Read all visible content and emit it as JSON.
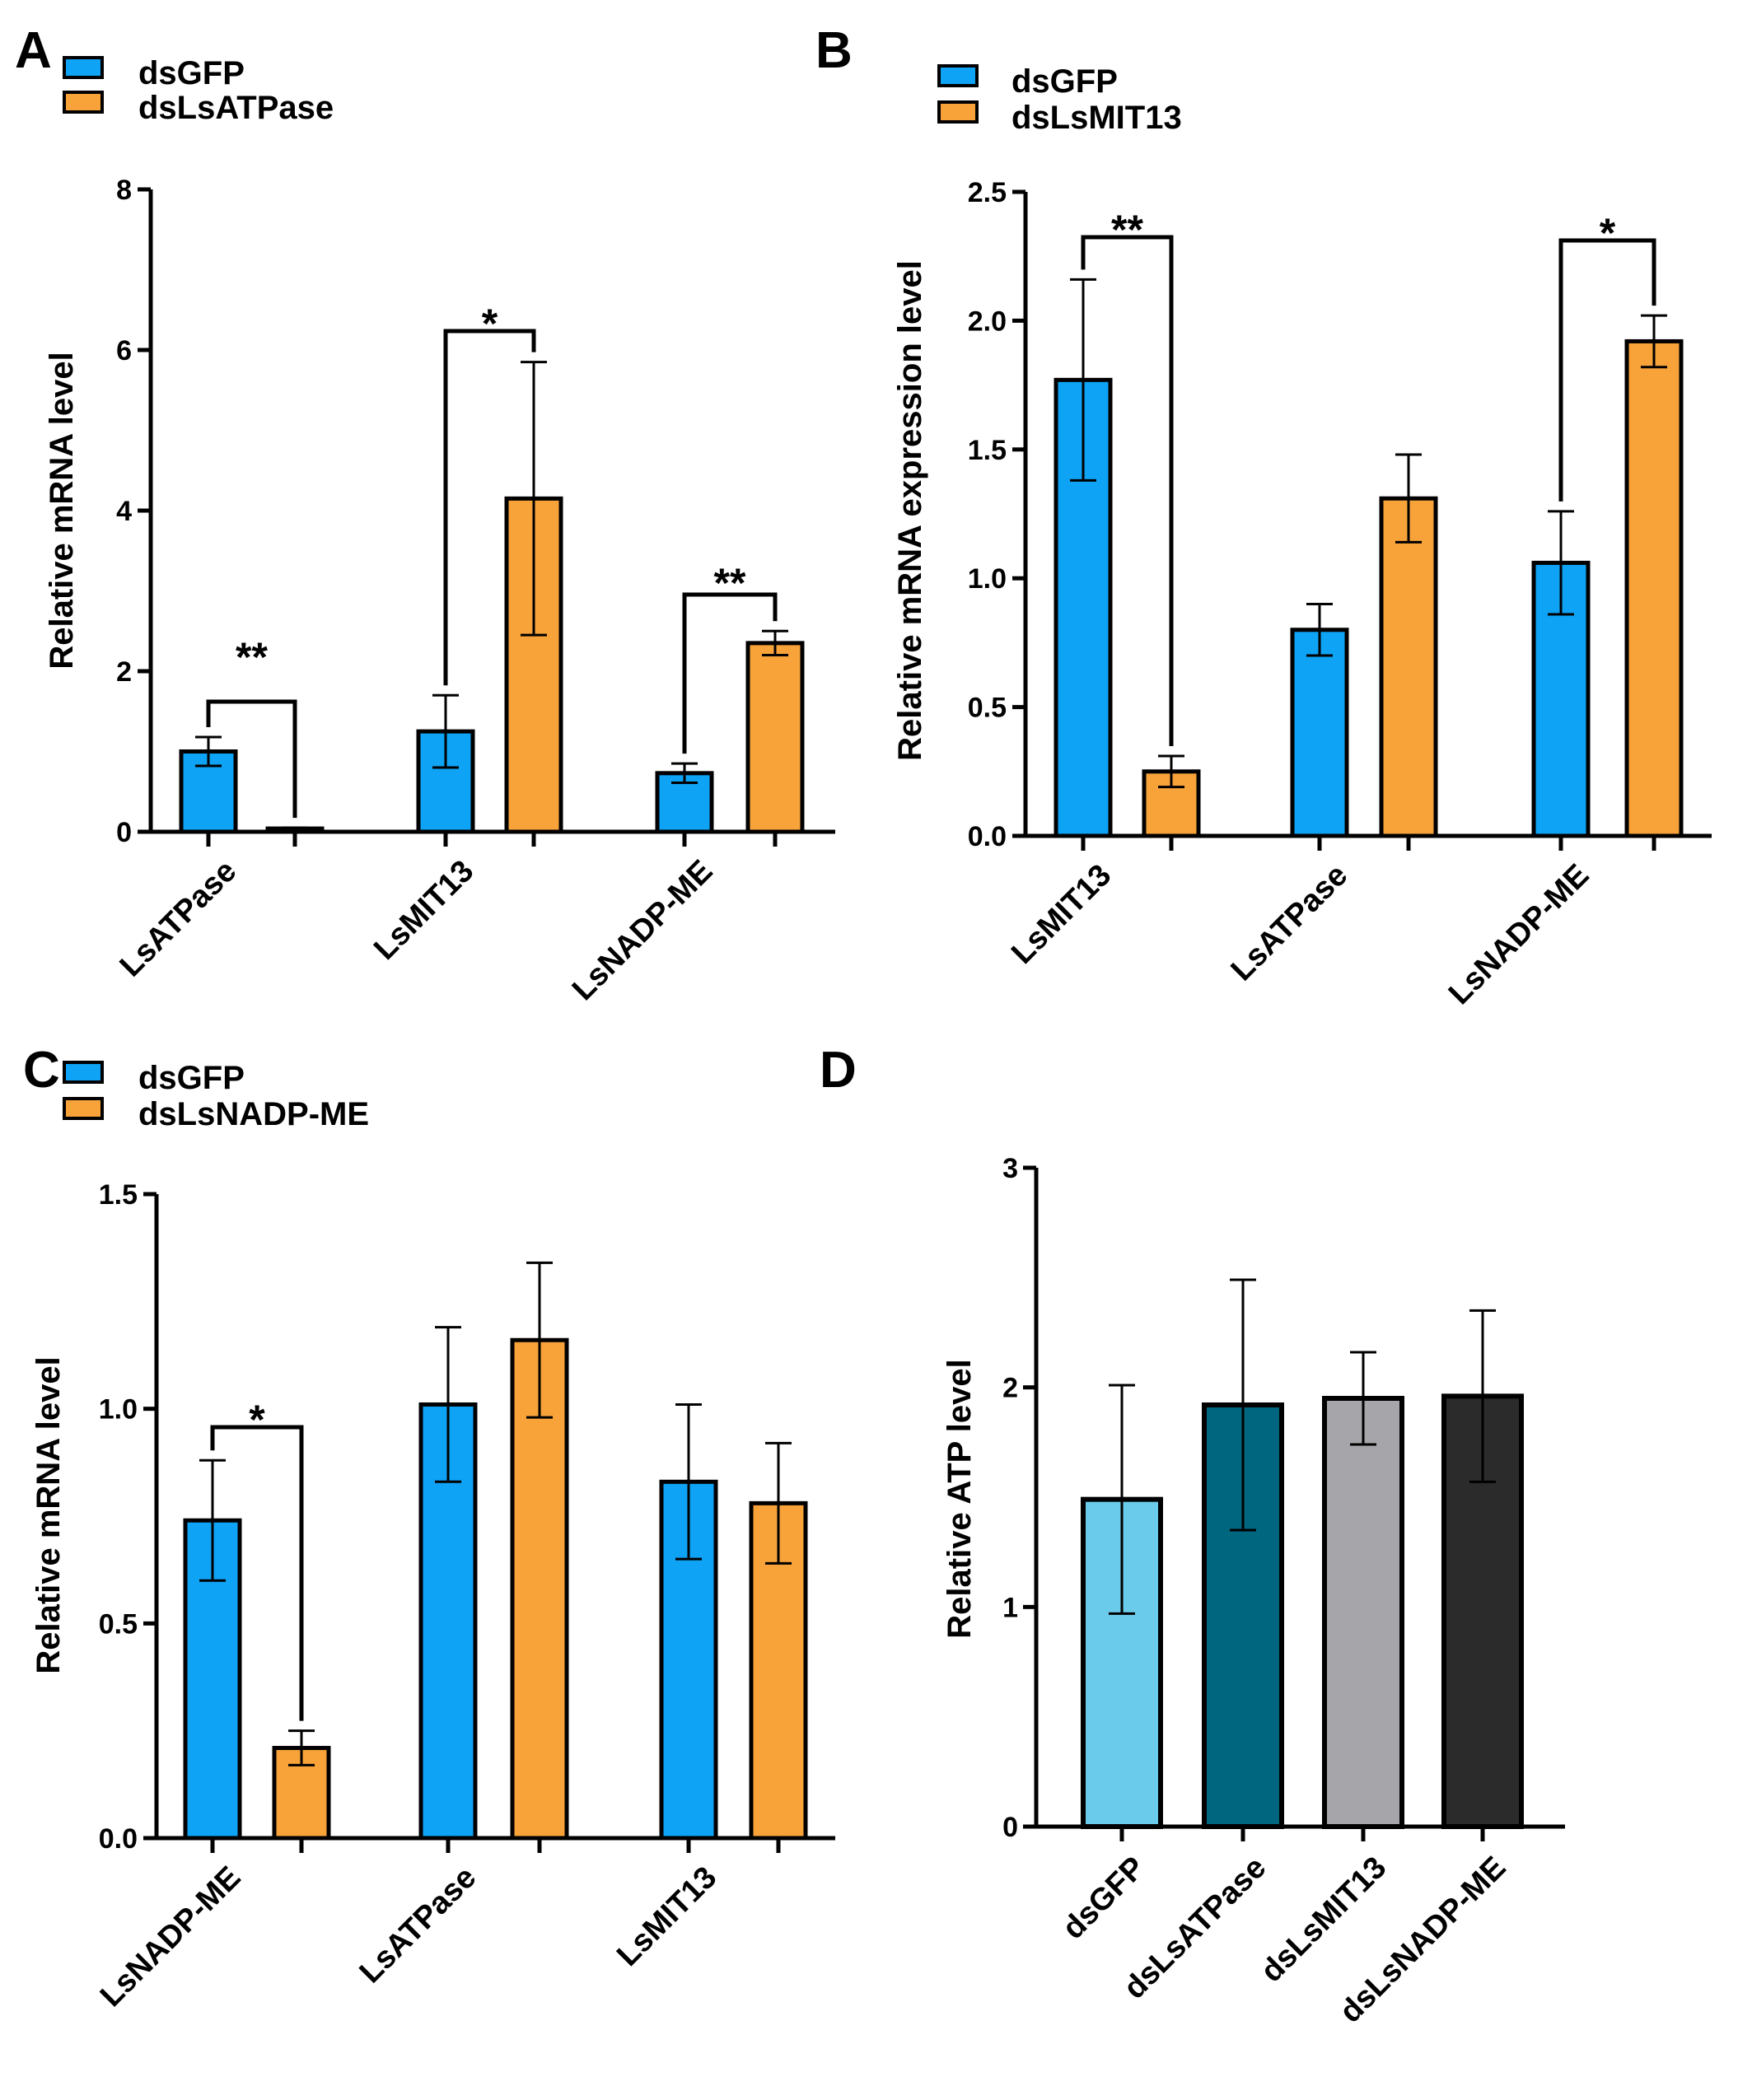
{
  "chart_data": [
    {
      "panel": "A",
      "type": "bar",
      "ylabel": "Relative mRNA  level",
      "ylim": [
        0,
        8
      ],
      "yticks": [
        0,
        2,
        4,
        6,
        8
      ],
      "ytick_labels": [
        "0",
        "2",
        "4",
        "6",
        "8"
      ],
      "categories": [
        "LsATPase",
        "LsMIT13",
        "LsNADP-ME"
      ],
      "legend_position": "top-left",
      "series": [
        {
          "name": "dsGFP",
          "color": "#0EA3F5",
          "values": [
            1.0,
            1.25,
            0.73
          ],
          "errors": [
            0.18,
            0.45,
            0.12
          ]
        },
        {
          "name": "dsLsATPase",
          "color": "#F8A33A",
          "values": [
            0.04,
            4.15,
            2.35
          ],
          "errors": [
            0.01,
            1.7,
            0.15
          ]
        }
      ],
      "significance": [
        {
          "category": "LsATPase",
          "label": "**"
        },
        {
          "category": "LsMIT13",
          "label": "*"
        },
        {
          "category": "LsNADP-ME",
          "label": "**"
        }
      ]
    },
    {
      "panel": "B",
      "type": "bar",
      "ylabel": "Relative mRNA expression level",
      "ylim": [
        0,
        2.5
      ],
      "yticks": [
        0,
        0.5,
        1.0,
        1.5,
        2.0,
        2.5
      ],
      "ytick_labels": [
        "0.0",
        "0.5",
        "1.0",
        "1.5",
        "2.0",
        "2.5"
      ],
      "categories": [
        "LsMIT13",
        "LsATPase",
        "LsNADP-ME"
      ],
      "legend_position": "top-left",
      "series": [
        {
          "name": "dsGFP",
          "color": "#0EA3F5",
          "values": [
            1.77,
            0.8,
            1.06
          ],
          "errors": [
            0.39,
            0.1,
            0.2
          ]
        },
        {
          "name": "dsLsMIT13",
          "color": "#F8A33A",
          "values": [
            0.25,
            1.31,
            1.92
          ],
          "errors": [
            0.06,
            0.17,
            0.1
          ]
        }
      ],
      "significance": [
        {
          "category": "LsMIT13",
          "label": "**"
        },
        {
          "category": "LsNADP-ME",
          "label": "*"
        }
      ]
    },
    {
      "panel": "C",
      "type": "bar",
      "ylabel": "Relative mRNA  level",
      "ylim": [
        0,
        1.5
      ],
      "yticks": [
        0,
        0.5,
        1.0,
        1.5
      ],
      "ytick_labels": [
        "0.0",
        "0.5",
        "1.0",
        "1.5"
      ],
      "categories": [
        "LsNADP-ME",
        "LsATPase",
        "LsMIT13"
      ],
      "legend_position": "top-left",
      "series": [
        {
          "name": "dsGFP",
          "color": "#0EA3F5",
          "values": [
            0.74,
            1.01,
            0.83
          ],
          "errors": [
            0.14,
            0.18,
            0.18
          ]
        },
        {
          "name": "dsLsNADP-ME",
          "color": "#F8A33A",
          "values": [
            0.21,
            1.16,
            0.78
          ],
          "errors": [
            0.04,
            0.18,
            0.14
          ]
        }
      ],
      "significance": [
        {
          "category": "LsNADP-ME",
          "label": "*"
        }
      ]
    },
    {
      "panel": "D",
      "type": "bar",
      "ylabel": "Relative ATP level",
      "ylim": [
        0,
        3
      ],
      "yticks": [
        0,
        1,
        2,
        3
      ],
      "ytick_labels": [
        "0",
        "1",
        "2",
        "3"
      ],
      "categories": [
        "dsGFP",
        "dsLsATPase",
        "dsLsMIT13",
        "dsLsNADP-ME"
      ],
      "colors": [
        "#6BCBEA",
        "#006680",
        "#A6A6AA",
        "#2B2B2B"
      ],
      "values": [
        1.49,
        1.92,
        1.95,
        1.96
      ],
      "errors": [
        0.52,
        0.57,
        0.21,
        0.39
      ]
    }
  ]
}
